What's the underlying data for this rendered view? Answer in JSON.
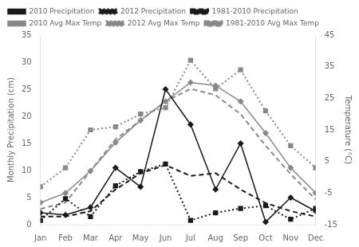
{
  "chart_data": {
    "type": "line",
    "categories": [
      "Jan",
      "Feb",
      "Mar",
      "Apr",
      "May",
      "Jun",
      "Jul",
      "Aug",
      "Sep",
      "Oct",
      "Nov",
      "Dec"
    ],
    "series": [
      {
        "name": "2010 Precipitation",
        "color": "#1a1a1a",
        "axis": "y",
        "line_style": "solid",
        "marker": "diamond",
        "values": [
          2.2,
          1.8,
          3.2,
          10.5,
          7.0,
          25.0,
          18.5,
          6.5,
          15.0,
          0.5,
          5.0,
          2.5
        ]
      },
      {
        "name": "2012 Precipitation",
        "color": "#1a1a1a",
        "axis": "y",
        "line_style": "dotted",
        "marker": "square",
        "values": [
          0.8,
          4.8,
          1.5,
          7.2,
          9.8,
          11.2,
          0.8,
          2.2,
          3.0,
          3.5,
          1.0,
          3.0
        ]
      },
      {
        "name": "1981-2010 Precipitation",
        "color": "#1a1a1a",
        "axis": "y",
        "line_style": "dashed",
        "marker": "none",
        "values": [
          1.5,
          1.5,
          2.5,
          6.5,
          9.5,
          11.0,
          9.0,
          9.5,
          6.5,
          4.0,
          2.5,
          1.5
        ]
      },
      {
        "name": "2010 Avg Max Temp",
        "color": "#888888",
        "axis": "y2",
        "line_style": "solid",
        "marker": "diamond",
        "values": [
          -8.0,
          -5.0,
          2.0,
          11.0,
          18.0,
          24.0,
          30.0,
          29.0,
          24.0,
          14.0,
          3.0,
          -5.0
        ]
      },
      {
        "name": "2012 Avg Max Temp",
        "color": "#888888",
        "axis": "y2",
        "line_style": "dotted",
        "marker": "square",
        "values": [
          -3.0,
          3.0,
          15.0,
          16.0,
          20.0,
          22.0,
          37.0,
          28.0,
          34.0,
          21.0,
          10.0,
          3.0
        ]
      },
      {
        "name": "1981-2010 Avg Max Temp",
        "color": "#888888",
        "axis": "y2",
        "line_style": "dashed",
        "marker": "none",
        "values": [
          -10.0,
          -8.0,
          2.0,
          12.0,
          18.0,
          24.0,
          28.0,
          26.0,
          20.0,
          10.0,
          1.0,
          -7.0
        ]
      }
    ],
    "ylabel": "Monthly Precipitation (cm)",
    "y2label": "Temperature (°C)",
    "ylim": [
      0,
      35
    ],
    "yticks": [
      0,
      5,
      10,
      15,
      20,
      25,
      30,
      35
    ],
    "y2lim": [
      -15,
      45
    ],
    "y2ticks": [
      -15,
      -5,
      5,
      15,
      25,
      35,
      45
    ],
    "grid": false,
    "legend": "upper left"
  }
}
